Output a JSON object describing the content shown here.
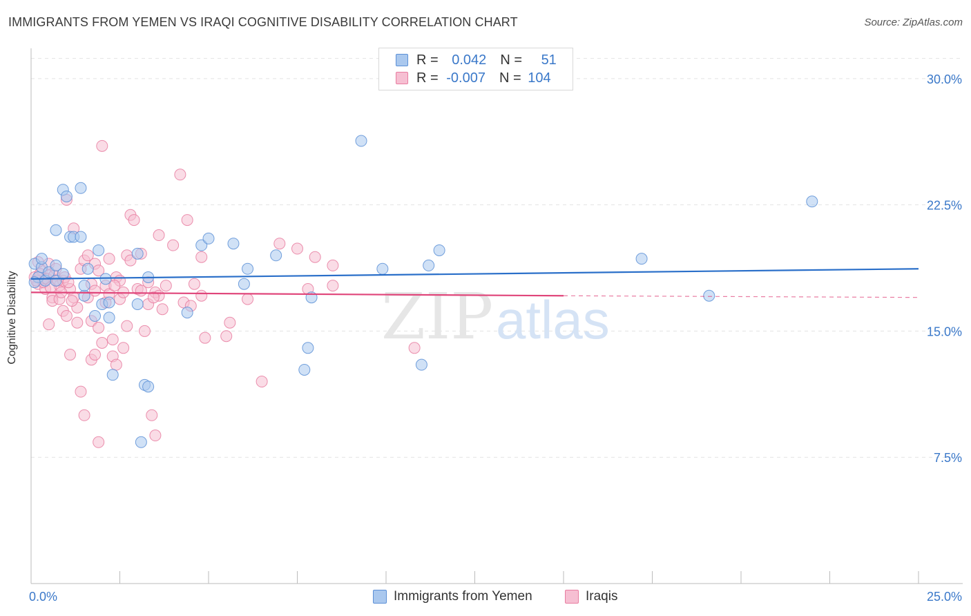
{
  "title": "IMMIGRANTS FROM YEMEN VS IRAQI COGNITIVE DISABILITY CORRELATION CHART",
  "source": "Source: ZipAtlas.com",
  "watermark": {
    "zip": "ZIP",
    "atlas": "atlas"
  },
  "legend": {
    "rows": [
      {
        "r_label": "R = ",
        "r_value": "0.042",
        "n_label": "N = ",
        "n_value": "51"
      },
      {
        "r_label": "R = ",
        "r_value": "-0.007",
        "n_label": "N = ",
        "n_value": "104"
      }
    ]
  },
  "colors": {
    "series1_fill": "#aac8ee",
    "series1_stroke": "#5b8fd6",
    "series1_line": "#2a6fc9",
    "series2_fill": "#f6bfd2",
    "series2_stroke": "#e87ca0",
    "series2_line": "#e0457a",
    "axis_text": "#3a78c9",
    "grid": "#e3e3e3"
  },
  "chart_data": {
    "type": "scatter",
    "title": "IMMIGRANTS FROM YEMEN VS IRAQI COGNITIVE DISABILITY CORRELATION CHART",
    "xlabel": "",
    "ylabel": "Cognitive Disability",
    "xlim": [
      0,
      25
    ],
    "ylim": [
      0,
      31.8
    ],
    "x_tick_labels": [
      {
        "value": 0,
        "label": "0.0%"
      },
      {
        "value": 25,
        "label": "25.0%"
      }
    ],
    "y_tick_labels": [
      {
        "value": 7.5,
        "label": "7.5%"
      },
      {
        "value": 15,
        "label": "15.0%"
      },
      {
        "value": 22.5,
        "label": "22.5%"
      },
      {
        "value": 30,
        "label": "30.0%"
      }
    ],
    "series": [
      {
        "name": "Immigrants from Yemen",
        "R": 0.042,
        "N": 51,
        "trend": {
          "x": [
            0,
            25
          ],
          "y": [
            18.1,
            18.7
          ]
        },
        "points": [
          [
            0.1,
            19.0
          ],
          [
            0.2,
            18.2
          ],
          [
            0.3,
            18.8
          ],
          [
            0.3,
            19.3
          ],
          [
            0.4,
            18.0
          ],
          [
            0.5,
            18.5
          ],
          [
            0.7,
            18.9
          ],
          [
            0.7,
            18.0
          ],
          [
            0.9,
            18.4
          ],
          [
            0.7,
            21.0
          ],
          [
            0.9,
            23.4
          ],
          [
            1.0,
            23.0
          ],
          [
            1.1,
            20.6
          ],
          [
            1.2,
            20.6
          ],
          [
            1.4,
            23.5
          ],
          [
            1.4,
            20.6
          ],
          [
            1.5,
            17.1
          ],
          [
            1.6,
            18.7
          ],
          [
            1.5,
            17.7
          ],
          [
            1.8,
            15.9
          ],
          [
            1.9,
            19.8
          ],
          [
            2.0,
            16.6
          ],
          [
            2.1,
            18.1
          ],
          [
            2.2,
            16.7
          ],
          [
            2.2,
            15.8
          ],
          [
            2.3,
            12.4
          ],
          [
            3.0,
            19.6
          ],
          [
            3.0,
            16.6
          ],
          [
            3.1,
            8.4
          ],
          [
            3.2,
            11.8
          ],
          [
            3.3,
            11.7
          ],
          [
            3.3,
            18.2
          ],
          [
            4.4,
            16.1
          ],
          [
            4.8,
            20.1
          ],
          [
            5.0,
            20.5
          ],
          [
            5.7,
            20.2
          ],
          [
            6.0,
            17.8
          ],
          [
            6.1,
            18.7
          ],
          [
            6.9,
            19.5
          ],
          [
            7.7,
            12.7
          ],
          [
            7.8,
            14.0
          ],
          [
            7.9,
            17.0
          ],
          [
            9.3,
            26.3
          ],
          [
            9.9,
            18.7
          ],
          [
            11.0,
            13.0
          ],
          [
            11.2,
            18.9
          ],
          [
            11.5,
            19.8
          ],
          [
            17.2,
            19.3
          ],
          [
            19.1,
            17.1
          ],
          [
            22.0,
            22.7
          ],
          [
            0.1,
            17.9
          ]
        ]
      },
      {
        "name": "Iraqis",
        "R": -0.007,
        "N": 104,
        "trend": {
          "x": [
            0,
            15
          ],
          "y": [
            17.3,
            17.1
          ]
        },
        "trend_dashed": {
          "x": [
            15,
            25
          ],
          "y": [
            17.1,
            17.0
          ]
        },
        "points": [
          [
            0.1,
            18.2
          ],
          [
            0.2,
            17.8
          ],
          [
            0.3,
            18.6
          ],
          [
            0.4,
            18.1
          ],
          [
            0.4,
            17.5
          ],
          [
            0.5,
            19.0
          ],
          [
            0.5,
            18.3
          ],
          [
            0.6,
            17.0
          ],
          [
            0.6,
            16.8
          ],
          [
            0.5,
            15.4
          ],
          [
            0.7,
            18.7
          ],
          [
            0.8,
            17.7
          ],
          [
            0.8,
            16.9
          ],
          [
            0.9,
            18.0
          ],
          [
            0.9,
            16.2
          ],
          [
            1.0,
            15.9
          ],
          [
            1.0,
            22.8
          ],
          [
            1.1,
            13.6
          ],
          [
            1.1,
            17.5
          ],
          [
            1.2,
            21.1
          ],
          [
            1.2,
            17.0
          ],
          [
            1.3,
            16.4
          ],
          [
            1.3,
            15.5
          ],
          [
            1.4,
            18.7
          ],
          [
            1.4,
            11.4
          ],
          [
            1.5,
            19.2
          ],
          [
            1.5,
            10.0
          ],
          [
            1.6,
            19.5
          ],
          [
            1.6,
            17.0
          ],
          [
            1.7,
            15.6
          ],
          [
            1.7,
            17.8
          ],
          [
            1.7,
            13.3
          ],
          [
            1.8,
            19.0
          ],
          [
            1.8,
            13.6
          ],
          [
            1.8,
            17.4
          ],
          [
            1.9,
            15.2
          ],
          [
            1.9,
            18.6
          ],
          [
            1.9,
            8.4
          ],
          [
            2.0,
            26.0
          ],
          [
            2.0,
            14.3
          ],
          [
            2.1,
            17.7
          ],
          [
            2.1,
            16.7
          ],
          [
            2.2,
            19.3
          ],
          [
            2.2,
            17.2
          ],
          [
            2.3,
            14.5
          ],
          [
            2.3,
            13.5
          ],
          [
            2.4,
            13.0
          ],
          [
            2.4,
            18.2
          ],
          [
            2.5,
            16.9
          ],
          [
            2.5,
            18.0
          ],
          [
            2.6,
            14.0
          ],
          [
            2.6,
            17.3
          ],
          [
            2.7,
            19.5
          ],
          [
            2.7,
            15.3
          ],
          [
            2.8,
            19.2
          ],
          [
            2.8,
            21.9
          ],
          [
            2.9,
            21.6
          ],
          [
            3.0,
            17.5
          ],
          [
            3.1,
            19.6
          ],
          [
            3.1,
            17.4
          ],
          [
            3.2,
            15.0
          ],
          [
            3.3,
            17.9
          ],
          [
            3.3,
            16.6
          ],
          [
            3.4,
            10.0
          ],
          [
            3.5,
            8.8
          ],
          [
            3.5,
            17.3
          ],
          [
            3.6,
            20.7
          ],
          [
            3.6,
            17.1
          ],
          [
            3.7,
            16.3
          ],
          [
            3.8,
            17.7
          ],
          [
            4.0,
            20.1
          ],
          [
            4.2,
            24.3
          ],
          [
            4.3,
            16.7
          ],
          [
            4.4,
            21.6
          ],
          [
            4.6,
            17.8
          ],
          [
            4.8,
            19.4
          ],
          [
            4.8,
            17.1
          ],
          [
            4.9,
            14.6
          ],
          [
            5.5,
            14.7
          ],
          [
            5.6,
            15.5
          ],
          [
            6.1,
            16.9
          ],
          [
            6.5,
            12.0
          ],
          [
            7.0,
            20.2
          ],
          [
            7.5,
            19.9
          ],
          [
            7.8,
            17.5
          ],
          [
            8.0,
            19.4
          ],
          [
            8.5,
            18.9
          ],
          [
            8.5,
            17.7
          ],
          [
            10.8,
            14.0
          ],
          [
            0.15,
            18.0
          ],
          [
            0.25,
            18.4
          ],
          [
            0.35,
            17.9
          ],
          [
            0.45,
            18.1
          ],
          [
            0.55,
            17.6
          ],
          [
            0.65,
            18.3
          ],
          [
            0.75,
            18.0
          ],
          [
            0.85,
            17.3
          ],
          [
            0.95,
            18.2
          ],
          [
            1.05,
            17.9
          ],
          [
            1.15,
            16.8
          ],
          [
            2.35,
            17.7
          ],
          [
            3.45,
            17.0
          ],
          [
            4.5,
            16.5
          ],
          [
            0.2,
            19.1
          ]
        ]
      }
    ],
    "legend": [
      {
        "label": "Immigrants from Yemen"
      },
      {
        "label": "Iraqis"
      }
    ]
  }
}
